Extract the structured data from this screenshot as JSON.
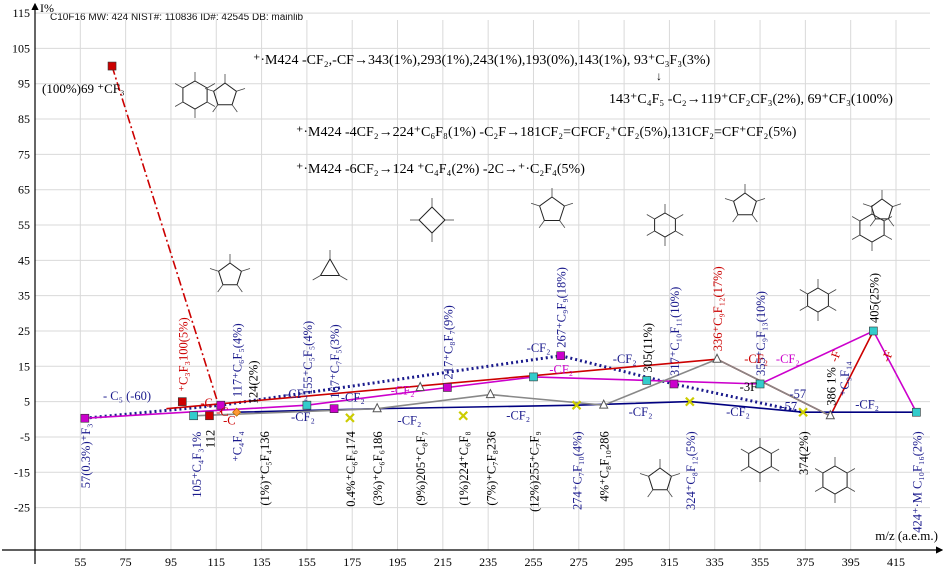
{
  "chart_data": {
    "type": "line",
    "header": "C10F16 MW: 424 NIST#: 110836 ID#: 42545 DB: mainlib",
    "ylabel": "I%",
    "xlabel": "m/z (a.e.m.)",
    "xlim": [
      35,
      430
    ],
    "ylim": [
      -37,
      117
    ],
    "xticks": [
      55,
      75,
      95,
      115,
      135,
      155,
      175,
      195,
      215,
      235,
      255,
      275,
      295,
      315,
      335,
      355,
      375,
      395,
      415
    ],
    "yticks": [
      115,
      105,
      95,
      85,
      75,
      65,
      55,
      45,
      35,
      25,
      15,
      5,
      -5,
      -15,
      -25
    ],
    "series": [
      {
        "color": "#cc0000",
        "style": "dashdot",
        "points": [
          [
            69,
            100
          ],
          [
            117,
            2
          ]
        ]
      },
      {
        "color": "#1a1a8c",
        "style": "dotted",
        "points": [
          [
            57,
            0.3
          ],
          [
            117,
            4
          ],
          [
            267,
            18
          ],
          [
            317,
            10
          ],
          [
            374,
            2
          ]
        ]
      },
      {
        "color": "#cc00cc",
        "style": "solid",
        "points": [
          [
            57,
            0.3
          ],
          [
            155,
            4
          ],
          [
            217,
            9
          ],
          [
            255,
            12
          ],
          [
            305,
            11
          ],
          [
            355,
            10
          ],
          [
            405,
            25
          ],
          [
            424,
            2
          ]
        ]
      },
      {
        "color": "#cc0000",
        "style": "solid",
        "points": [
          [
            93,
            3
          ],
          [
            336,
            17
          ],
          [
            386,
            1
          ],
          [
            405,
            25
          ]
        ]
      },
      {
        "color": "#000080",
        "style": "solid",
        "points": [
          [
            124,
            2
          ],
          [
            186,
            3
          ],
          [
            274,
            4
          ],
          [
            324,
            5
          ],
          [
            374,
            2
          ],
          [
            424,
            2
          ]
        ]
      },
      {
        "color": "#888888",
        "style": "solid",
        "points": [
          [
            105,
            1
          ],
          [
            186,
            3
          ],
          [
            236,
            7
          ],
          [
            286,
            4
          ],
          [
            336,
            17
          ],
          [
            386,
            1
          ]
        ]
      }
    ],
    "markers": [
      {
        "x": 69,
        "y": 100,
        "color": "#cc0000"
      },
      {
        "x": 57,
        "y": 0.3,
        "color": "#cc00cc"
      },
      {
        "x": 100,
        "y": 5,
        "color": "#cc0000"
      },
      {
        "x": 105,
        "y": 1,
        "color": "#33cccc"
      },
      {
        "x": 112,
        "y": 1,
        "color": "#cc0000"
      },
      {
        "x": 117,
        "y": 4,
        "color": "#cc00cc"
      },
      {
        "x": 124,
        "y": 2,
        "color": "#ff9933"
      },
      {
        "x": 155,
        "y": 4,
        "color": "#33cccc"
      },
      {
        "x": 167,
        "y": 3,
        "color": "#cc00cc"
      },
      {
        "x": 174,
        "y": 0.4,
        "color": "#cccc00"
      },
      {
        "x": 186,
        "y": 3,
        "color": "#ffffff"
      },
      {
        "x": 205,
        "y": 9,
        "color": "#ffffff"
      },
      {
        "x": 217,
        "y": 9,
        "color": "#cc00cc"
      },
      {
        "x": 224,
        "y": 1,
        "color": "#cccc00"
      },
      {
        "x": 236,
        "y": 7,
        "color": "#ffffff"
      },
      {
        "x": 255,
        "y": 12,
        "color": "#33cccc"
      },
      {
        "x": 267,
        "y": 18,
        "color": "#cc00cc"
      },
      {
        "x": 274,
        "y": 4,
        "color": "#cccc00"
      },
      {
        "x": 286,
        "y": 4,
        "color": "#ffffff"
      },
      {
        "x": 305,
        "y": 11,
        "color": "#33cccc"
      },
      {
        "x": 317,
        "y": 10,
        "color": "#cc00cc"
      },
      {
        "x": 324,
        "y": 5,
        "color": "#cccc00"
      },
      {
        "x": 336,
        "y": 17,
        "color": "#ffffff"
      },
      {
        "x": 355,
        "y": 10,
        "color": "#33cccc"
      },
      {
        "x": 374,
        "y": 2,
        "color": "#cccc00"
      },
      {
        "x": 386,
        "y": 1,
        "color": "#ffffff"
      },
      {
        "x": 405,
        "y": 25,
        "color": "#33cccc"
      },
      {
        "x": 424,
        "y": 2,
        "color": "#33cccc"
      }
    ],
    "top_annotations": [
      "(100%)69 ⁺CF₃",
      "⁺·M424 -CF₂,-CF→343(1%),293(1%),243(1%),193(0%),143(1%), 93⁺C₃F₃(3%)",
      "↓",
      "143⁺C₄F₅ -C₂→119⁺CF₂CF₃(2%), 69⁺CF₃(100%)",
      "⁺·M424 -4CF₂→224⁺C₆F₈(1%) -C₂F→181CF₂=CFCF₂⁺CF₂(5%),131CF₂=CF⁺CF₂(5%)",
      "⁺·M424 -6CF₂→124 ⁺C₄F₄(2%) -2C→⁺·C₂F₄(5%)"
    ],
    "peak_labels": [
      "57(0.3%)⁺F₃",
      "⁺C₃F₃100(5%)",
      "105⁺C₄F₃1%",
      "112",
      "117⁺C₆F₅(4%)",
      "124(2%)",
      "⁺C₄F₄",
      "(1%)⁺C₅F₄136",
      "155⁺C₅F₅(4%)",
      "167⁺C₇F₅(3%)",
      "0.4%⁺C₆F₆174",
      "(3%)⁺C₆F₆186",
      "(9%)205⁺C₈F₇",
      "217⁺C₈F₇(9%)",
      "(1%)224⁺C₆F₈",
      "(7%)⁺C₇F₈236",
      "(12%)255⁺C₇F₉",
      "267⁺C₉F₉(18%)",
      "274⁺C₇F₁₀(4%)",
      "4%⁺C₈F₁₀286",
      "305(11%)",
      "317⁺C₁₀F₁₁(10%)",
      "324⁺C₈F₁₂(5%)",
      "336⁺C₉F₁₂(17%)",
      "355⁺C₉F₁₃(10%)",
      "374(2%)",
      "386 1%",
      "⁺C₉F₁₄",
      "405(25%)",
      "424⁺·M C₁₀F₁₆(2%)"
    ],
    "transition_labels": [
      "- C₅ (-60)",
      "-CF₂",
      "-CF₂",
      "-CF₂",
      "-CF₂",
      "-CF₂",
      "-CF₂",
      "-CF₂",
      "-CF₂",
      "-CF₂",
      "-CF₂",
      "-CF₂",
      "-CF₂",
      "-CF₂",
      "-CF₂",
      "-C",
      "-C",
      "-C",
      "-F",
      "-F",
      "-57",
      "-57",
      "-3F"
    ]
  }
}
